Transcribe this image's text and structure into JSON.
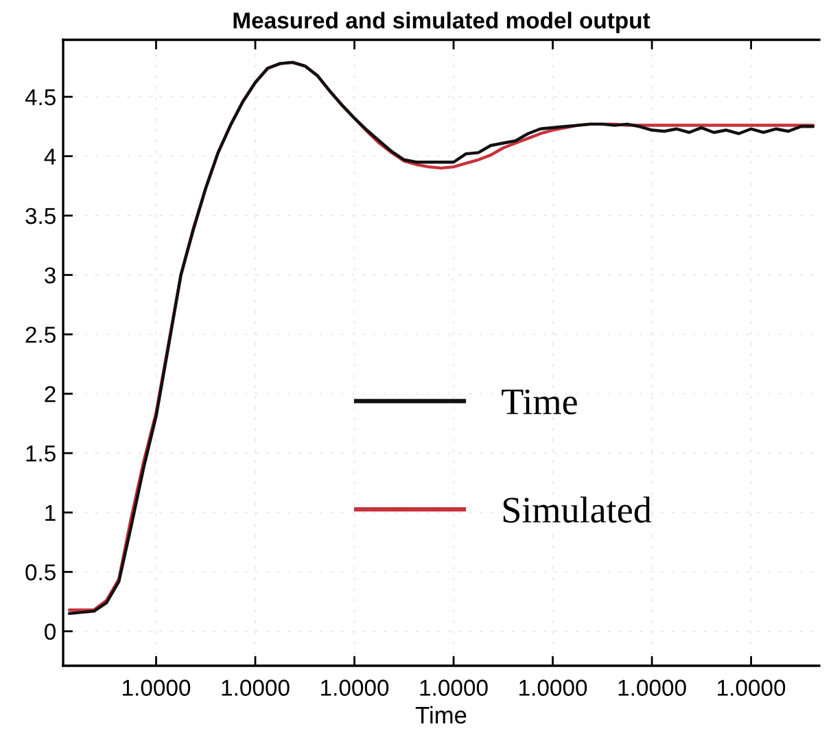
{
  "chart_data": {
    "type": "line",
    "title": "Measured and simulated model output",
    "xlabel": "Time",
    "categories": [
      null,
      null,
      null,
      null,
      null,
      null,
      null,
      "1.0000",
      null,
      null,
      null,
      null,
      null,
      null,
      null,
      "1.0000",
      null,
      null,
      null,
      null,
      null,
      null,
      null,
      "1.0000",
      null,
      null,
      null,
      null,
      null,
      null,
      null,
      "1.0000",
      null,
      null,
      null,
      null,
      null,
      null,
      null,
      "1.0000",
      null,
      null,
      null,
      null,
      null,
      null,
      null,
      "1.0000",
      null,
      null,
      null,
      null,
      null,
      null,
      null,
      "1.0000",
      null,
      null,
      null,
      null,
      null
    ],
    "ylim": [
      -0.29,
      4.98
    ],
    "yticks": [
      0,
      0.5,
      1,
      1.5,
      2,
      2.5,
      3,
      3.5,
      4,
      4.5
    ],
    "grid": true,
    "legend": "center",
    "series": [
      {
        "name": "Time",
        "color": "#111111",
        "values": [
          0.15,
          0.16,
          0.17,
          0.24,
          0.42,
          0.89,
          1.38,
          1.81,
          2.4,
          3.0,
          3.38,
          3.73,
          4.03,
          4.26,
          4.46,
          4.62,
          4.74,
          4.78,
          4.79,
          4.76,
          4.68,
          4.55,
          4.43,
          4.32,
          4.22,
          4.13,
          4.04,
          3.97,
          3.95,
          3.95,
          3.95,
          3.95,
          4.02,
          4.03,
          4.09,
          4.11,
          4.13,
          4.19,
          4.23,
          4.24,
          4.25,
          4.26,
          4.27,
          4.27,
          4.26,
          4.27,
          4.25,
          4.22,
          4.21,
          4.23,
          4.2,
          4.24,
          4.2,
          4.22,
          4.19,
          4.23,
          4.2,
          4.23,
          4.21,
          4.25,
          4.25
        ]
      },
      {
        "name": "Simulated",
        "color": "#c8323c",
        "values": [
          0.18,
          0.18,
          0.18,
          0.26,
          0.44,
          0.96,
          1.43,
          1.84,
          2.42,
          3.0,
          3.39,
          3.73,
          4.03,
          4.26,
          4.46,
          4.62,
          4.74,
          4.78,
          4.79,
          4.76,
          4.68,
          4.55,
          4.43,
          4.32,
          4.21,
          4.11,
          4.03,
          3.96,
          3.93,
          3.91,
          3.9,
          3.91,
          3.94,
          3.97,
          4.01,
          4.07,
          4.11,
          4.15,
          4.19,
          4.22,
          4.24,
          4.26,
          4.27,
          4.27,
          4.27,
          4.26,
          4.26,
          4.26,
          4.26,
          4.26,
          4.26,
          4.26,
          4.26,
          4.26,
          4.26,
          4.26,
          4.26,
          4.26,
          4.26,
          4.26,
          4.26
        ]
      }
    ]
  }
}
